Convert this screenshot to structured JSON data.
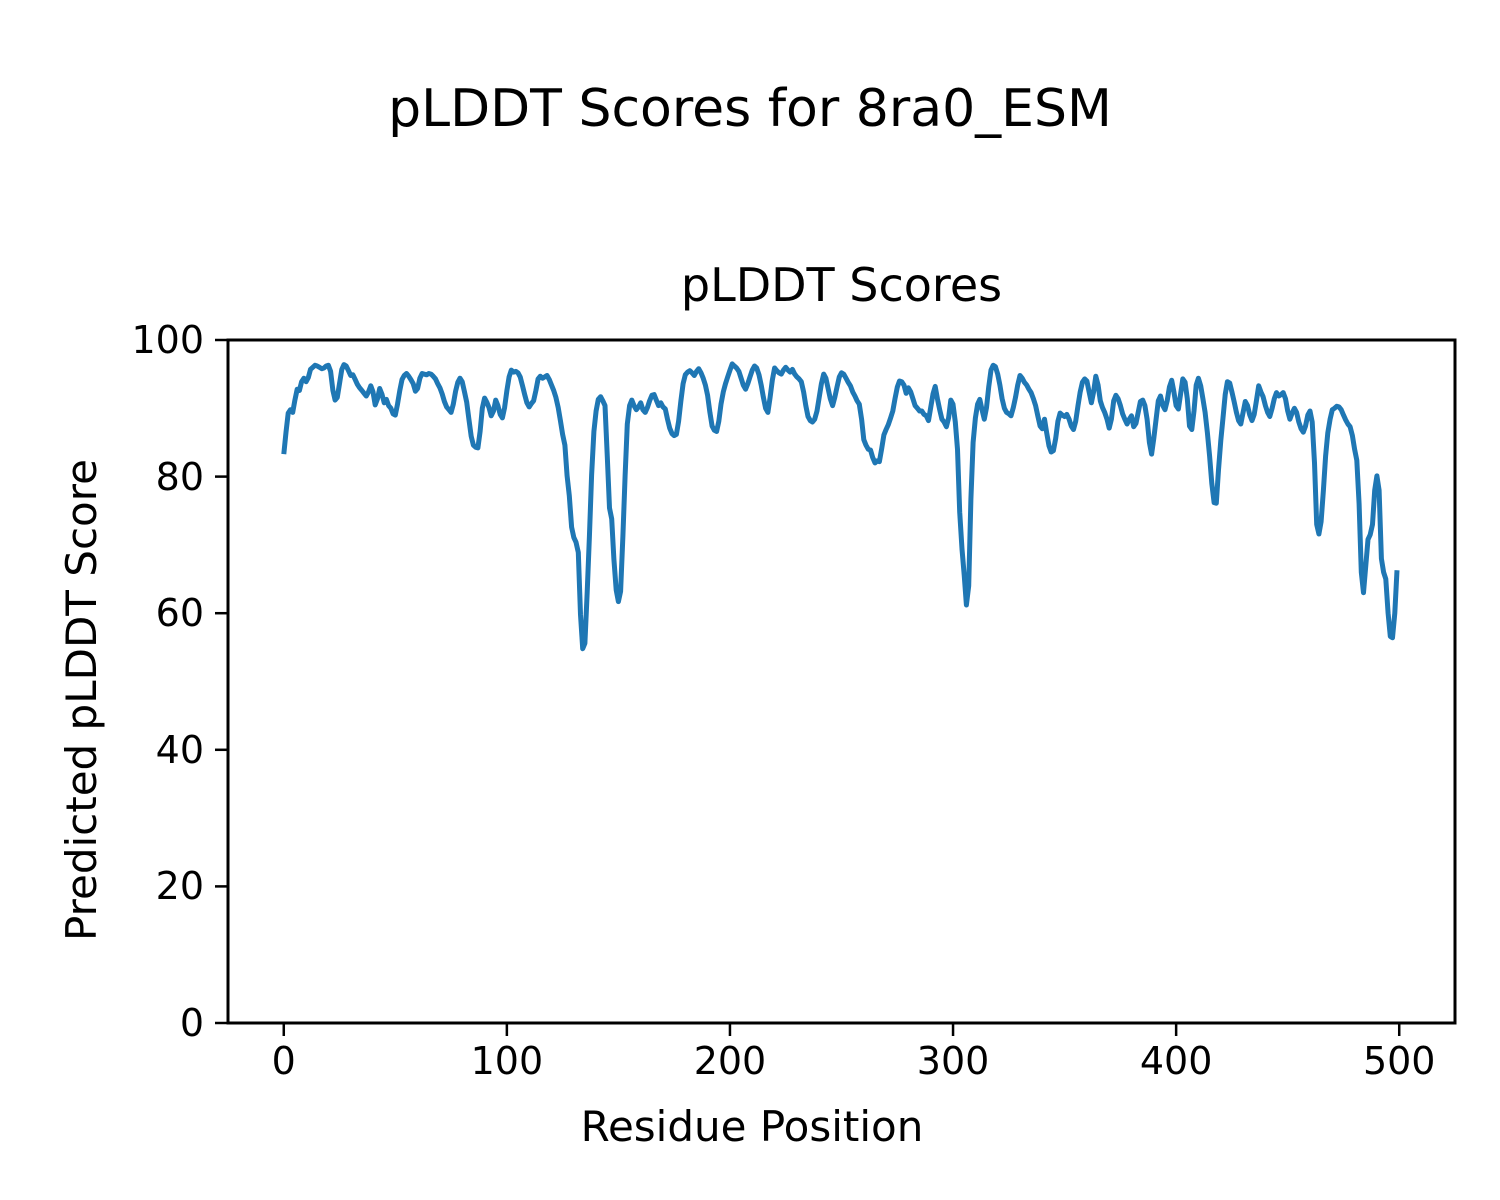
{
  "chart_data": {
    "type": "line",
    "suptitle": "pLDDT Scores for 8ra0_ESM",
    "title": "pLDDT Scores",
    "xlabel": "Residue Position",
    "ylabel": "Predicted pLDDT Score",
    "xlim": [
      -25,
      525
    ],
    "ylim": [
      0,
      100
    ],
    "xticks": [
      0,
      100,
      200,
      300,
      400,
      500
    ],
    "yticks": [
      0,
      20,
      40,
      60,
      80,
      100
    ],
    "grid": false,
    "legend": "none",
    "line_color": "#1f77b4",
    "axis_color": "#000000",
    "series": [
      {
        "name": "pLDDT",
        "x_start": 0,
        "x_step": 1,
        "values": [
          83.3,
          86.5,
          89.3,
          89.8,
          89.4,
          91.2,
          92.8,
          92.6,
          93.9,
          94.4,
          93.9,
          94.5,
          95.7,
          96.0,
          96.3,
          96.2,
          96.0,
          95.8,
          95.9,
          96.2,
          96.3,
          95.4,
          92.6,
          91.2,
          91.6,
          93.6,
          95.7,
          96.4,
          96.2,
          95.5,
          94.8,
          94.9,
          94.2,
          93.5,
          93.0,
          92.6,
          92.2,
          91.8,
          92.4,
          93.3,
          92.4,
          90.5,
          91.4,
          92.9,
          92.1,
          90.8,
          91.3,
          90.4,
          90.0,
          89.2,
          89.0,
          90.6,
          92.6,
          94.2,
          94.8,
          95.1,
          94.7,
          94.2,
          93.6,
          92.5,
          92.9,
          94.4,
          95.1,
          95.0,
          94.9,
          95.1,
          95.0,
          94.7,
          94.3,
          93.6,
          93.0,
          92.1,
          91.0,
          90.2,
          89.8,
          89.4,
          90.6,
          92.5,
          93.8,
          94.4,
          93.9,
          92.4,
          90.9,
          88.4,
          85.9,
          84.6,
          84.3,
          84.2,
          86.6,
          90.0,
          91.5,
          90.9,
          90.1,
          88.9,
          89.6,
          91.2,
          90.4,
          89.1,
          88.6,
          90.1,
          92.6,
          94.6,
          95.6,
          95.3,
          95.4,
          95.2,
          94.6,
          93.3,
          92.0,
          90.8,
          90.2,
          90.7,
          91.1,
          92.6,
          94.3,
          94.7,
          94.4,
          94.6,
          94.8,
          94.2,
          93.4,
          92.6,
          91.6,
          90.1,
          88.2,
          86.2,
          84.6,
          80.1,
          77.2,
          72.6,
          71.1,
          70.4,
          68.9,
          59.8,
          54.8,
          55.6,
          63.1,
          71.2,
          80.2,
          86.6,
          89.6,
          91.3,
          91.7,
          91.1,
          90.4,
          82.9,
          75.4,
          73.8,
          67.9,
          63.4,
          61.7,
          63.2,
          71.3,
          80.1,
          87.7,
          90.4,
          91.2,
          90.4,
          89.8,
          90.2,
          90.8,
          89.8,
          89.4,
          90.1,
          91.1,
          91.9,
          92.0,
          91.2,
          90.4,
          90.8,
          90.2,
          89.9,
          88.4,
          87.1,
          86.3,
          86.0,
          86.2,
          88.1,
          91.1,
          93.6,
          94.9,
          95.3,
          95.5,
          95.2,
          94.8,
          95.4,
          95.8,
          95.2,
          94.4,
          93.4,
          91.9,
          89.4,
          87.4,
          86.8,
          86.6,
          88.1,
          90.6,
          92.4,
          93.6,
          94.6,
          95.6,
          96.5,
          96.2,
          95.9,
          95.4,
          94.4,
          93.4,
          92.8,
          93.6,
          94.6,
          95.6,
          96.2,
          95.9,
          94.9,
          93.4,
          91.6,
          90.0,
          89.4,
          91.6,
          94.1,
          95.9,
          95.5,
          95.2,
          95.0,
          95.6,
          96.0,
          95.6,
          95.3,
          95.7,
          95.0,
          94.6,
          94.3,
          93.9,
          92.4,
          90.4,
          88.8,
          88.2,
          88.0,
          88.4,
          89.6,
          91.6,
          93.6,
          95.0,
          94.4,
          92.9,
          91.4,
          90.4,
          91.6,
          93.1,
          94.6,
          95.2,
          95.0,
          94.4,
          93.8,
          93.3,
          92.4,
          91.8,
          91.1,
          90.6,
          88.4,
          85.4,
          84.6,
          84.0,
          83.9,
          82.8,
          82.0,
          82.3,
          82.2,
          84.1,
          86.1,
          86.9,
          87.6,
          88.6,
          89.6,
          91.4,
          93.1,
          94.0,
          93.9,
          93.4,
          92.2,
          93.0,
          92.4,
          91.4,
          90.4,
          90.0,
          89.6,
          89.6,
          89.1,
          88.9,
          88.2,
          90.1,
          92.1,
          93.2,
          91.4,
          89.8,
          88.4,
          88.0,
          87.3,
          88.6,
          91.2,
          90.6,
          88.0,
          84.0,
          74.8,
          69.4,
          65.6,
          61.2,
          64.0,
          76.7,
          85.0,
          88.6,
          90.6,
          91.3,
          89.8,
          88.4,
          90.1,
          93.1,
          95.6,
          96.3,
          96.1,
          95.0,
          93.4,
          91.4,
          90.0,
          89.4,
          89.2,
          88.9,
          90.1,
          91.6,
          93.4,
          94.8,
          94.4,
          93.8,
          93.4,
          92.8,
          92.3,
          91.4,
          90.4,
          88.9,
          87.4,
          87.0,
          88.4,
          86.4,
          84.5,
          83.6,
          83.8,
          85.6,
          88.1,
          89.3,
          89.0,
          88.8,
          89.1,
          88.4,
          87.4,
          86.9,
          88.1,
          90.4,
          92.4,
          93.8,
          94.3,
          94.0,
          92.4,
          90.8,
          92.4,
          94.7,
          93.4,
          91.1,
          90.1,
          89.4,
          88.4,
          87.1,
          88.4,
          91.1,
          91.9,
          91.4,
          90.4,
          89.2,
          88.4,
          87.7,
          88.4,
          88.9,
          87.3,
          87.8,
          89.4,
          91.0,
          91.2,
          90.4,
          88.4,
          85.0,
          83.3,
          85.6,
          88.4,
          91.1,
          91.8,
          90.4,
          89.8,
          91.1,
          93.1,
          94.1,
          92.4,
          90.4,
          89.9,
          92.1,
          94.3,
          93.8,
          91.4,
          87.4,
          86.9,
          89.6,
          93.4,
          94.4,
          93.3,
          91.4,
          89.4,
          86.4,
          83.0,
          79.0,
          76.2,
          76.1,
          81.0,
          85.3,
          88.6,
          92.0,
          93.9,
          93.7,
          92.4,
          91.0,
          89.4,
          88.2,
          87.7,
          89.4,
          91.0,
          90.4,
          89.0,
          88.2,
          89.1,
          91.1,
          93.3,
          92.4,
          91.7,
          90.4,
          89.4,
          88.8,
          90.0,
          91.4,
          92.3,
          91.8,
          92.0,
          92.3,
          91.4,
          89.6,
          88.4,
          89.3,
          90.0,
          89.4,
          88.0,
          87.0,
          86.5,
          87.4,
          89.0,
          89.6,
          88.0,
          82.0,
          73.0,
          71.6,
          73.4,
          78.0,
          83.0,
          86.4,
          88.4,
          89.8,
          90.0,
          90.3,
          90.2,
          89.8,
          89.0,
          88.3,
          87.7,
          87.3,
          86.0,
          84.0,
          82.4,
          76.0,
          66.0,
          63.0,
          67.0,
          70.8,
          71.5,
          73.0,
          78.0,
          80.1,
          78.0,
          68.0,
          66.0,
          65.0,
          60.0,
          56.6,
          56.4,
          60.0,
          66.3
        ]
      }
    ]
  }
}
